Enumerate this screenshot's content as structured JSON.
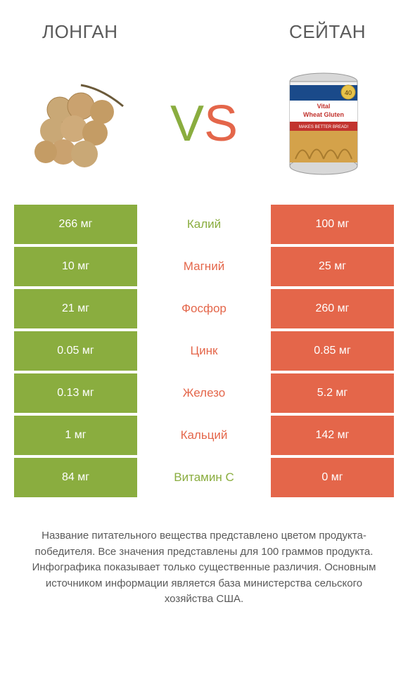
{
  "header": {
    "left_title": "ЛОНГАН",
    "right_title": "СЕЙТАН"
  },
  "vs": {
    "v": "V",
    "s": "S"
  },
  "colors": {
    "green": "#8aad3f",
    "orange": "#e4664a",
    "text_gray": "#5a5a5a",
    "white": "#ffffff"
  },
  "rows": [
    {
      "left": "266 мг",
      "label": "Калий",
      "right": "100 мг",
      "winner": "left"
    },
    {
      "left": "10 мг",
      "label": "Магний",
      "right": "25 мг",
      "winner": "right"
    },
    {
      "left": "21 мг",
      "label": "Фосфор",
      "right": "260 мг",
      "winner": "right"
    },
    {
      "left": "0.05 мг",
      "label": "Цинк",
      "right": "0.85 мг",
      "winner": "right"
    },
    {
      "left": "0.13 мг",
      "label": "Железо",
      "right": "5.2 мг",
      "winner": "right"
    },
    {
      "left": "1 мг",
      "label": "Кальций",
      "right": "142 мг",
      "winner": "right"
    },
    {
      "left": "84 мг",
      "label": "Витамин C",
      "right": "0 мг",
      "winner": "left"
    }
  ],
  "footnote": "Название питательного вещества представлено цветом продукта-победителя.\nВсе значения представлены для 100 граммов продукта. Инфографика показывает только существенные различия. Основным источником информации является база министерства сельского хозяйства США."
}
